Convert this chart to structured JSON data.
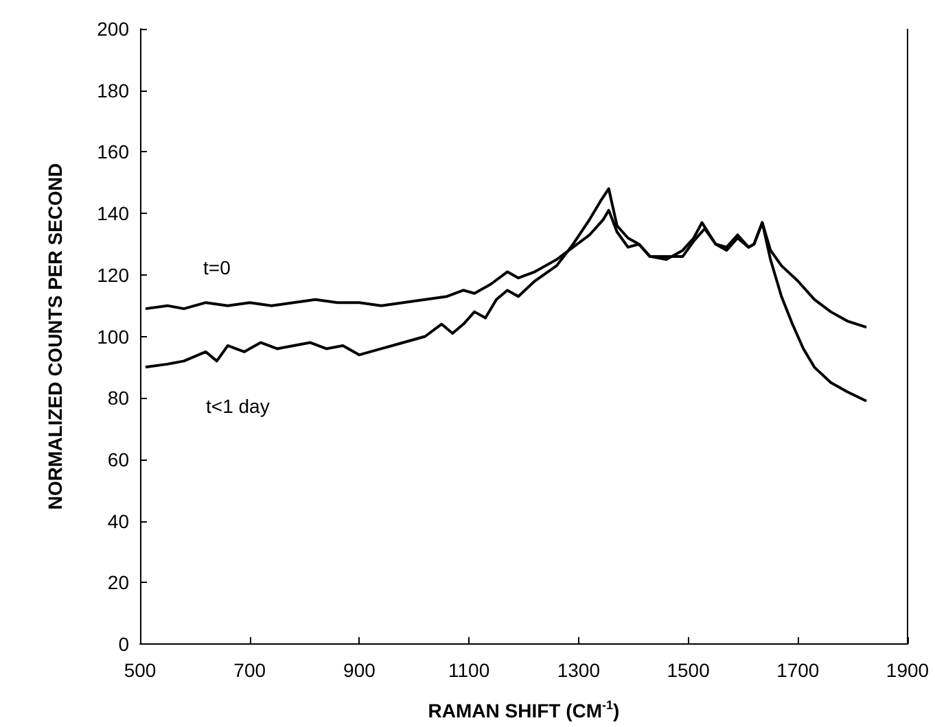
{
  "chart_data": {
    "type": "line",
    "xlabel": "RAMAN SHIFT (CM$^{-1}$)",
    "ylabel": "NORMALIZED COUNTS PER SECOND",
    "xlim": [
      500,
      1900
    ],
    "xticks": [
      500,
      700,
      900,
      1100,
      1300,
      1500,
      1700,
      1900
    ],
    "ylim": [
      0,
      200
    ],
    "yticks": [
      0,
      20,
      40,
      60,
      80,
      100,
      120,
      140,
      160,
      180,
      200
    ],
    "grid": false,
    "marker": "none",
    "line_style": "solid",
    "annotations": [
      "t=0",
      "t<1 day"
    ],
    "series": [
      {
        "color": "#000000",
        "x": [
          510,
          550,
          580,
          620,
          660,
          700,
          740,
          780,
          820,
          860,
          900,
          940,
          980,
          1020,
          1060,
          1090,
          1110,
          1140,
          1170,
          1190,
          1220,
          1260,
          1290,
          1320,
          1345,
          1355,
          1370,
          1390,
          1410,
          1430,
          1460,
          1490,
          1510,
          1530,
          1550,
          1570,
          1590,
          1610,
          1620,
          1635,
          1650,
          1670,
          1700,
          1730,
          1760,
          1790,
          1825
        ],
        "values": [
          109,
          110,
          109,
          111,
          110,
          111,
          110,
          111,
          112,
          111,
          111,
          110,
          111,
          112,
          113,
          115,
          114,
          117,
          121,
          119,
          121,
          125,
          129,
          133,
          138,
          141,
          134,
          129,
          130,
          126,
          126,
          126,
          131,
          135,
          130,
          128,
          132,
          129,
          130,
          137,
          128,
          123,
          118,
          112,
          108,
          105,
          103
        ]
      },
      {
        "color": "#000000",
        "x": [
          510,
          550,
          580,
          620,
          640,
          660,
          690,
          720,
          750,
          780,
          810,
          840,
          870,
          900,
          940,
          980,
          1020,
          1050,
          1070,
          1090,
          1110,
          1130,
          1150,
          1170,
          1190,
          1220,
          1260,
          1290,
          1320,
          1340,
          1355,
          1370,
          1390,
          1410,
          1430,
          1460,
          1490,
          1510,
          1525,
          1550,
          1570,
          1590,
          1610,
          1620,
          1635,
          1650,
          1670,
          1690,
          1710,
          1730,
          1760,
          1790,
          1825
        ],
        "values": [
          90,
          91,
          92,
          95,
          92,
          97,
          95,
          98,
          96,
          97,
          98,
          96,
          97,
          94,
          96,
          98,
          100,
          104,
          101,
          104,
          108,
          106,
          112,
          115,
          113,
          118,
          123,
          130,
          138,
          144,
          148,
          136,
          132,
          130,
          126,
          125,
          128,
          132,
          137,
          130,
          129,
          133,
          129,
          130,
          137,
          125,
          113,
          104,
          96,
          90,
          85,
          82,
          79
        ]
      }
    ]
  }
}
